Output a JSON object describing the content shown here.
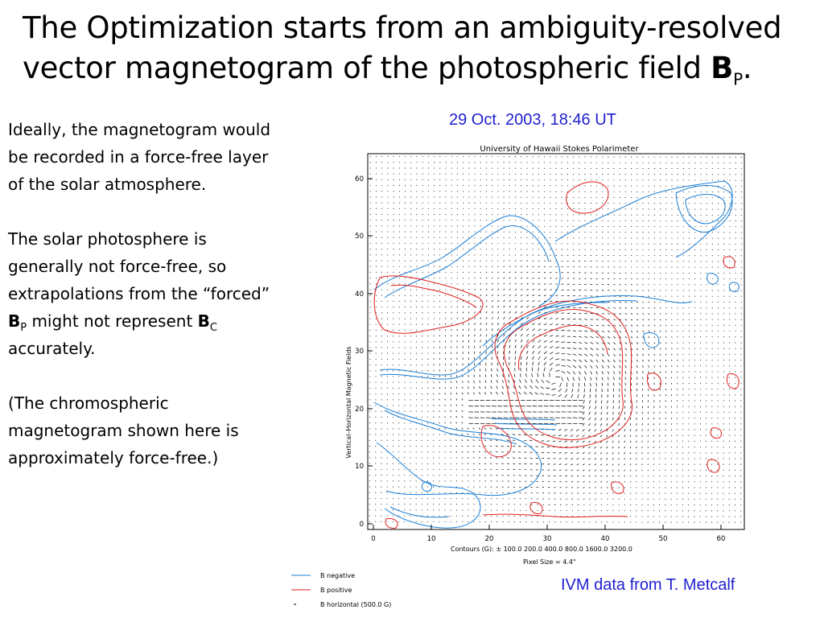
{
  "slide": {
    "title_main": "The Optimization starts from an ambiguity-resolved vector magnetogram of the photospheric field ",
    "title_symbol": "B",
    "title_sub": "P",
    "title_end": ".",
    "para1": "Ideally, the magnetogram would be recorded in a force-free layer of the solar atmosphere.",
    "para2_a": "The solar photosphere is generally not force-free, so extrapolations from the “forced” ",
    "para2_sym1": "B",
    "para2_sub1": "P",
    "para2_b": " might not represent ",
    "para2_sym2": "B",
    "para2_sub2": "C",
    "para2_c": " accurately.",
    "para3": "(The chromospheric magnetogram shown here is approximately force-free.)",
    "date_caption": "29 Oct. 2003, 18:46 UT",
    "credit": "IVM data from T. Metcalf"
  },
  "figure": {
    "title": "University of Hawaii Stokes Polarimeter",
    "ylabel": "Vertical–Horizontal Magnetic Fields",
    "x_ticks": [
      "0",
      "10",
      "20",
      "30",
      "40",
      "50",
      "60"
    ],
    "y_ticks": [
      "0",
      "10",
      "20",
      "30",
      "40",
      "50",
      "60"
    ],
    "contours_line": "Contours (G): ±   100.0 200.0 400.0 800.0 1600.0 3200.0",
    "pixel_size": "Pixel Size = 4.4\"",
    "legend": [
      {
        "label": "B negative",
        "color": "#1a7fd6"
      },
      {
        "label": "B positive",
        "color": "#e02020"
      },
      {
        "label": "B horizontal (500.0 G)",
        "color": "#000000"
      }
    ],
    "colors": {
      "negative": "#1a7fd6",
      "positive": "#e02020"
    }
  }
}
